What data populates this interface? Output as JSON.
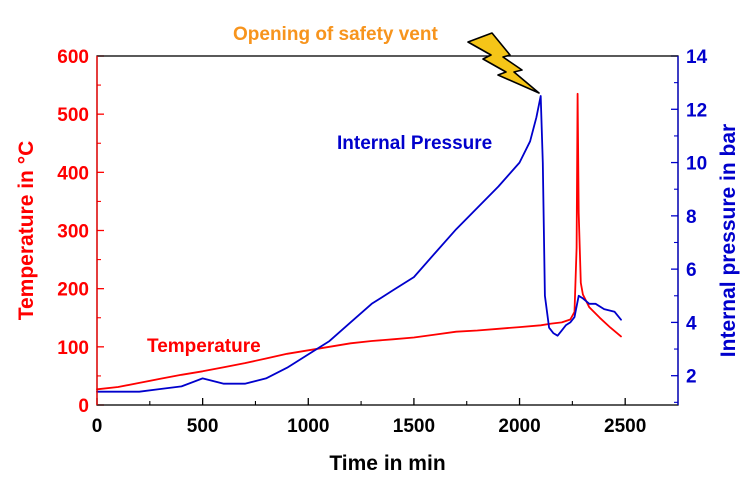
{
  "chart_data": {
    "type": "line",
    "xlabel": "Time in min",
    "ylabel_left": "Temperature in °C",
    "ylabel_right": "Internal pressure in bar",
    "xlim": [
      0,
      2750
    ],
    "ylim_left": [
      0,
      600
    ],
    "ylim_right": [
      0.9,
      14
    ],
    "x_ticks": [
      "0",
      "500",
      "1000",
      "1500",
      "2000",
      "2500"
    ],
    "y_left_ticks": [
      "0",
      "100",
      "200",
      "300",
      "400",
      "500",
      "600"
    ],
    "y_right_ticks": [
      "2",
      "4",
      "6",
      "8",
      "10",
      "12",
      "14"
    ],
    "grid": false,
    "colors": {
      "temperature": "#ff0000",
      "pressure": "#0000cc",
      "annotation": "#f7941d",
      "lightning": "#f5c518"
    },
    "series": [
      {
        "name": "Temperature",
        "axis": "left",
        "x": [
          0,
          100,
          200,
          300,
          400,
          500,
          600,
          700,
          800,
          900,
          1000,
          1100,
          1200,
          1300,
          1400,
          1500,
          1600,
          1700,
          1800,
          1900,
          2000,
          2100,
          2150,
          2200,
          2240,
          2260,
          2270,
          2275,
          2280,
          2290,
          2300,
          2330,
          2380,
          2430,
          2480
        ],
        "values": [
          27,
          31,
          38,
          45,
          52,
          58,
          65,
          72,
          80,
          88,
          94,
          100,
          106,
          110,
          113,
          116,
          121,
          126,
          128,
          131,
          134,
          137,
          140,
          142,
          147,
          160,
          270,
          535,
          330,
          210,
          190,
          168,
          150,
          133,
          118
        ]
      },
      {
        "name": "Internal Pressure",
        "axis": "right",
        "x": [
          0,
          100,
          200,
          300,
          400,
          500,
          600,
          700,
          800,
          900,
          1000,
          1100,
          1200,
          1300,
          1400,
          1500,
          1600,
          1700,
          1800,
          1900,
          2000,
          2050,
          2080,
          2100,
          2110,
          2120,
          2140,
          2160,
          2180,
          2200,
          2220,
          2240,
          2260,
          2280,
          2300,
          2330,
          2360,
          2400,
          2450,
          2480
        ],
        "values": [
          1.4,
          1.4,
          1.4,
          1.5,
          1.6,
          1.9,
          1.7,
          1.7,
          1.9,
          2.3,
          2.8,
          3.3,
          4.0,
          4.7,
          5.2,
          5.7,
          6.6,
          7.5,
          8.3,
          9.1,
          10.0,
          10.8,
          11.7,
          12.5,
          10.0,
          5.0,
          3.8,
          3.6,
          3.5,
          3.7,
          3.9,
          4.0,
          4.2,
          5.0,
          4.9,
          4.7,
          4.7,
          4.5,
          4.4,
          4.1
        ]
      }
    ],
    "annotations": {
      "temperature_label": "Temperature",
      "pressure_label": "Internal Pressure",
      "vent_label": "Opening of safety vent"
    }
  }
}
